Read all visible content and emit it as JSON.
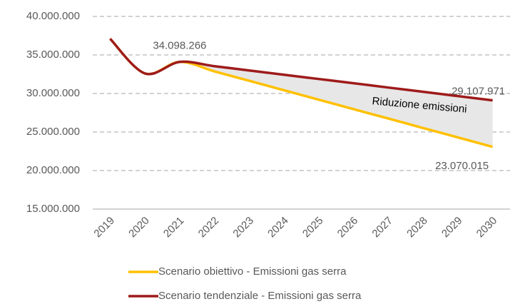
{
  "chart_data": {
    "type": "line",
    "categories": [
      "2019",
      "2020",
      "2021",
      "2022",
      "2023",
      "2024",
      "2025",
      "2026",
      "2027",
      "2028",
      "2029",
      "2030"
    ],
    "series": [
      {
        "name": "Scenario obiettivo - Emissioni gas serra",
        "color": "#ffc000",
        "values": [
          37100000,
          32600000,
          34098266,
          32870000,
          31650000,
          30420000,
          29200000,
          27970000,
          26750000,
          25520000,
          24300000,
          23070015
        ],
        "value_labels": [
          null,
          null,
          null,
          null,
          null,
          null,
          null,
          null,
          null,
          null,
          null,
          "23.070.015"
        ]
      },
      {
        "name": "Scenario tendenziale - Emissioni gas serra",
        "color": "#9e1b1b",
        "values": [
          37100000,
          32600000,
          34098266,
          33540000,
          32990000,
          32430000,
          31880000,
          31330000,
          30770000,
          30220000,
          29660000,
          29107971
        ],
        "value_labels": [
          null,
          null,
          "34.098.266",
          null,
          null,
          null,
          null,
          null,
          null,
          null,
          null,
          "29.107.971"
        ]
      }
    ],
    "annotation": "Riduzione emissioni",
    "area_color": "#e7e7e7",
    "ylim": [
      15000000,
      40000000
    ],
    "yticks": [
      {
        "value": 15000000,
        "label": "15.000.000"
      },
      {
        "value": 20000000,
        "label": "20.000.000"
      },
      {
        "value": 25000000,
        "label": "25.000.000"
      },
      {
        "value": 30000000,
        "label": "30.000.000"
      },
      {
        "value": 35000000,
        "label": "35.000.000"
      },
      {
        "value": 40000000,
        "label": "40.000.000"
      }
    ],
    "grid": true
  }
}
